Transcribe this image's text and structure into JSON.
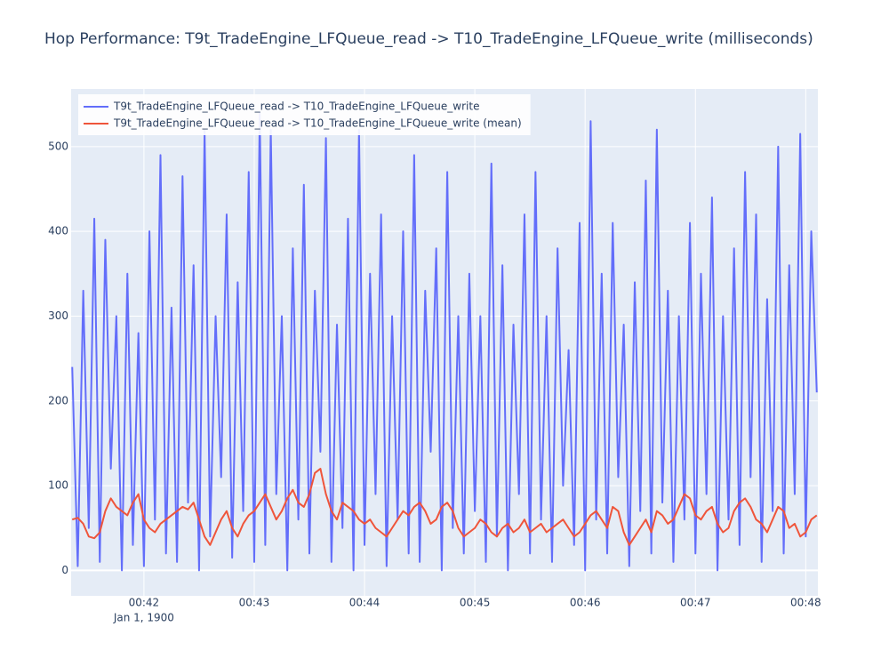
{
  "chart_data": {
    "type": "line",
    "title": "Hop Performance: T9t_TradeEngine_LFQueue_read -> T10_TradeEngine_LFQueue_write (milliseconds)",
    "x_date_label": "Jan 1, 1900",
    "x": [
      41.35,
      41.4,
      41.45,
      41.5,
      41.55,
      41.6,
      41.65,
      41.7,
      41.75,
      41.8,
      41.85,
      41.9,
      41.95,
      42,
      42.05,
      42.1,
      42.15,
      42.2,
      42.25,
      42.3,
      42.35,
      42.4,
      42.45,
      42.5,
      42.55,
      42.6,
      42.65,
      42.7,
      42.75,
      42.8,
      42.85,
      42.9,
      42.95,
      43,
      43.05,
      43.1,
      43.15,
      43.2,
      43.25,
      43.3,
      43.35,
      43.4,
      43.45,
      43.5,
      43.55,
      43.6,
      43.65,
      43.7,
      43.75,
      43.8,
      43.85,
      43.9,
      43.95,
      44,
      44.05,
      44.1,
      44.15,
      44.2,
      44.25,
      44.3,
      44.35,
      44.4,
      44.45,
      44.5,
      44.55,
      44.6,
      44.65,
      44.7,
      44.75,
      44.8,
      44.85,
      44.9,
      44.95,
      45,
      45.05,
      45.1,
      45.15,
      45.2,
      45.25,
      45.3,
      45.35,
      45.4,
      45.45,
      45.5,
      45.55,
      45.6,
      45.65,
      45.7,
      45.75,
      45.8,
      45.85,
      45.9,
      45.95,
      46,
      46.05,
      46.1,
      46.15,
      46.2,
      46.25,
      46.3,
      46.35,
      46.4,
      46.45,
      46.5,
      46.55,
      46.6,
      46.65,
      46.7,
      46.75,
      46.8,
      46.85,
      46.9,
      46.95,
      47,
      47.05,
      47.1,
      47.15,
      47.2,
      47.25,
      47.3,
      47.35,
      47.4,
      47.45,
      47.5,
      47.55,
      47.6,
      47.65,
      47.7,
      47.75,
      47.8,
      47.85,
      47.9,
      47.95,
      48,
      48.05,
      48.1
    ],
    "series": [
      {
        "name": "T9t_TradeEngine_LFQueue_read -> T10_TradeEngine_LFQueue_write",
        "color": "#636efa",
        "values": [
          240,
          5,
          330,
          50,
          415,
          10,
          390,
          120,
          300,
          0,
          350,
          30,
          280,
          5,
          400,
          60,
          490,
          20,
          310,
          10,
          465,
          80,
          360,
          0,
          520,
          40,
          300,
          110,
          420,
          15,
          340,
          70,
          470,
          10,
          540,
          30,
          520,
          90,
          300,
          0,
          380,
          60,
          455,
          20,
          330,
          140,
          510,
          10,
          290,
          50,
          415,
          0,
          520,
          30,
          350,
          90,
          420,
          5,
          300,
          60,
          400,
          20,
          490,
          10,
          330,
          140,
          380,
          0,
          470,
          50,
          300,
          20,
          350,
          70,
          300,
          10,
          480,
          40,
          360,
          0,
          290,
          90,
          420,
          20,
          470,
          60,
          300,
          10,
          380,
          100,
          260,
          30,
          410,
          0,
          530,
          60,
          350,
          20,
          410,
          110,
          290,
          5,
          340,
          70,
          460,
          20,
          520,
          80,
          330,
          10,
          300,
          60,
          410,
          20,
          350,
          90,
          440,
          0,
          300,
          60,
          380,
          30,
          470,
          110,
          420,
          10,
          320,
          70,
          500,
          20,
          360,
          90,
          515,
          40,
          400,
          210
        ]
      },
      {
        "name": "T9t_TradeEngine_LFQueue_read -> T10_TradeEngine_LFQueue_write (mean)",
        "color": "#ef553b",
        "values": [
          60,
          62,
          55,
          40,
          38,
          45,
          70,
          85,
          75,
          70,
          65,
          80,
          90,
          60,
          50,
          45,
          55,
          60,
          65,
          70,
          75,
          72,
          80,
          60,
          40,
          30,
          45,
          60,
          70,
          50,
          40,
          55,
          65,
          70,
          80,
          90,
          75,
          60,
          70,
          85,
          95,
          80,
          75,
          90,
          115,
          120,
          90,
          70,
          60,
          80,
          75,
          70,
          60,
          55,
          60,
          50,
          45,
          40,
          50,
          60,
          70,
          65,
          75,
          80,
          70,
          55,
          60,
          75,
          80,
          70,
          50,
          40,
          45,
          50,
          60,
          55,
          45,
          40,
          50,
          55,
          45,
          50,
          60,
          45,
          50,
          55,
          45,
          50,
          55,
          60,
          50,
          40,
          45,
          55,
          65,
          70,
          60,
          50,
          75,
          70,
          45,
          30,
          40,
          50,
          60,
          45,
          70,
          65,
          55,
          60,
          75,
          90,
          85,
          65,
          60,
          70,
          75,
          55,
          45,
          50,
          70,
          80,
          85,
          75,
          60,
          55,
          45,
          60,
          75,
          70,
          50,
          55,
          40,
          45,
          60,
          65
        ]
      }
    ],
    "xlim": [
      41.34,
      48.11
    ],
    "xticks": [
      {
        "value": 42,
        "label": "00:42"
      },
      {
        "value": 43,
        "label": "00:43"
      },
      {
        "value": 44,
        "label": "00:44"
      },
      {
        "value": 45,
        "label": "00:45"
      },
      {
        "value": 46,
        "label": "00:46"
      },
      {
        "value": 47,
        "label": "00:47"
      },
      {
        "value": 48,
        "label": "00:48"
      }
    ],
    "ylim": [
      -30,
      568
    ],
    "yticks": [
      0,
      100,
      200,
      300,
      400,
      500
    ],
    "grid": true,
    "legend": "top-left"
  }
}
